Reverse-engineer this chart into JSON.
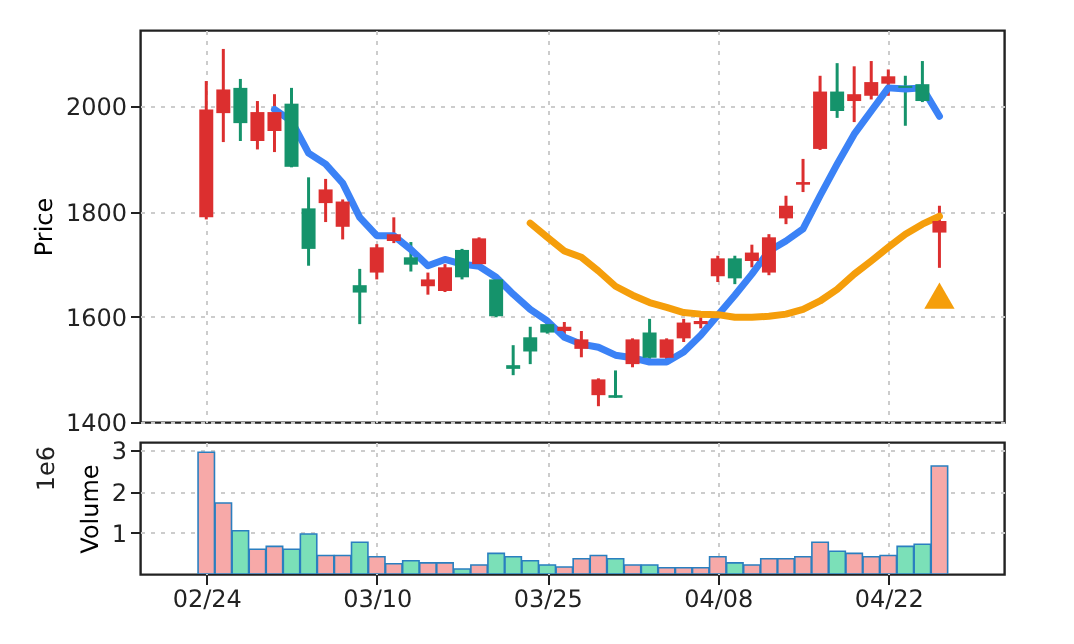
{
  "chart_data": [
    {
      "type": "candlestick",
      "ylabel": "Price",
      "categories": [
        null,
        null,
        null,
        null,
        null,
        null,
        null,
        null,
        null,
        null,
        null,
        null,
        null,
        null,
        null,
        null,
        null,
        null,
        null,
        null,
        null,
        null,
        null,
        null,
        null,
        null,
        null,
        null,
        null,
        null,
        null,
        null,
        null,
        null,
        null,
        null,
        null,
        null,
        null,
        null,
        null,
        null,
        null,
        null
      ],
      "ohlc": [
        [
          1789,
          2048,
          1785,
          1994
        ],
        [
          1987,
          2109,
          1932,
          2032
        ],
        [
          2035,
          2052,
          1934,
          1968
        ],
        [
          1934,
          2010,
          1918,
          1989
        ],
        [
          1953,
          2023,
          1913,
          1989
        ],
        [
          2005,
          2035,
          1884,
          1885
        ],
        [
          1806,
          1865,
          1697,
          1729
        ],
        [
          1816,
          1862,
          1780,
          1842
        ],
        [
          1771,
          1823,
          1747,
          1819
        ],
        [
          1660,
          1691,
          1586,
          1646
        ],
        [
          1684,
          1738,
          1671,
          1732
        ],
        [
          1744,
          1789,
          1740,
          1757
        ],
        [
          1713,
          1742,
          1686,
          1699
        ],
        [
          1658,
          1684,
          1642,
          1671
        ],
        [
          1649,
          1700,
          1647,
          1694
        ],
        [
          1727,
          1729,
          1671,
          1675
        ],
        [
          1700,
          1751,
          1698,
          1749
        ],
        [
          1671,
          1671,
          1599,
          1601
        ],
        [
          1508,
          1546,
          1489,
          1501
        ],
        [
          1561,
          1581,
          1510,
          1534
        ],
        [
          1586,
          1589,
          1568,
          1570
        ],
        [
          1573,
          1590,
          1565,
          1581
        ],
        [
          1539,
          1573,
          1523,
          1557
        ],
        [
          1451,
          1483,
          1430,
          1481
        ],
        [
          1451,
          1498,
          1446,
          1446
        ],
        [
          1510,
          1559,
          1504,
          1557
        ],
        [
          1570,
          1596,
          1520,
          1522
        ],
        [
          1522,
          1559,
          1518,
          1557
        ],
        [
          1559,
          1596,
          1552,
          1589
        ],
        [
          1586,
          1599,
          1578,
          1592
        ],
        [
          1677,
          1716,
          1666,
          1711
        ],
        [
          1711,
          1716,
          1662,
          1673
        ],
        [
          1706,
          1737,
          1694,
          1722
        ],
        [
          1684,
          1757,
          1679,
          1751
        ],
        [
          1787,
          1830,
          1776,
          1811
        ],
        [
          1851,
          1900,
          1837,
          1856
        ],
        [
          1919,
          2058,
          1917,
          2028
        ],
        [
          2028,
          2082,
          1978,
          1991
        ],
        [
          2010,
          2076,
          1970,
          2023
        ],
        [
          2020,
          2086,
          2013,
          2046
        ],
        [
          2043,
          2070,
          2020,
          2057
        ],
        [
          2039,
          2058,
          1963,
          2035
        ],
        [
          2042,
          2086,
          2008,
          2010
        ],
        [
          1760,
          1811,
          1693,
          1782
        ]
      ],
      "colors": [
        "#dc2f2f",
        "#dc2f2f",
        "#15936b",
        "#dc2f2f",
        "#dc2f2f",
        "#15936b",
        "#15936b",
        "#dc2f2f",
        "#dc2f2f",
        "#15936b",
        "#dc2f2f",
        "#dc2f2f",
        "#15936b",
        "#dc2f2f",
        "#dc2f2f",
        "#15936b",
        "#dc2f2f",
        "#15936b",
        "#15936b",
        "#15936b",
        "#15936b",
        "#dc2f2f",
        "#dc2f2f",
        "#dc2f2f",
        "#15936b",
        "#dc2f2f",
        "#15936b",
        "#dc2f2f",
        "#dc2f2f",
        "#dc2f2f",
        "#dc2f2f",
        "#15936b",
        "#dc2f2f",
        "#dc2f2f",
        "#dc2f2f",
        "#dc2f2f",
        "#dc2f2f",
        "#15936b",
        "#dc2f2f",
        "#dc2f2f",
        "#dc2f2f",
        "#15936b",
        "#15936b",
        "#dc2f2f"
      ],
      "ylim": [
        1400,
        2145
      ],
      "yticks": [
        1400,
        1600,
        1800,
        2000
      ],
      "grid": true,
      "tick_labels": "y",
      "series": [
        {
          "type": "line",
          "color": "#3b82f6",
          "values": [
            null,
            null,
            null,
            null,
            1994,
            1972,
            1911,
            1890,
            1854,
            1789,
            1754,
            1754,
            1728,
            1697,
            1709,
            1700,
            1696,
            1675,
            1643,
            1614,
            1592,
            1561,
            1548,
            1542,
            1527,
            1522,
            1514,
            1514,
            1533,
            1565,
            1603,
            1641,
            1681,
            1725,
            1744,
            1767,
            1830,
            1890,
            1947,
            1991,
            2035,
            2033,
            2035,
            1981
          ]
        },
        {
          "type": "line",
          "color": "#f59e0b",
          "values": [
            null,
            null,
            null,
            null,
            null,
            null,
            null,
            null,
            null,
            null,
            null,
            null,
            null,
            null,
            null,
            null,
            null,
            null,
            null,
            1778,
            1751,
            1725,
            1713,
            1687,
            1658,
            1641,
            1627,
            1618,
            1608,
            1605,
            1604,
            1599,
            1599,
            1601,
            1605,
            1614,
            1630,
            1652,
            1681,
            1706,
            1732,
            1757,
            1776,
            1791
          ]
        },
        {
          "type": "scatter",
          "marker": "triangle",
          "color": "#f59e0b",
          "values": [
            null,
            null,
            null,
            null,
            null,
            null,
            null,
            null,
            null,
            null,
            null,
            null,
            null,
            null,
            null,
            null,
            null,
            null,
            null,
            null,
            null,
            null,
            null,
            null,
            null,
            null,
            null,
            null,
            null,
            null,
            null,
            null,
            null,
            null,
            null,
            null,
            null,
            null,
            null,
            null,
            null,
            null,
            null,
            1640
          ]
        }
      ]
    },
    {
      "type": "bar",
      "ylabel": "Volume",
      "annotations": [
        "1e6"
      ],
      "categories": [
        "02/24",
        null,
        null,
        null,
        null,
        null,
        null,
        null,
        null,
        null,
        "03/10",
        null,
        null,
        null,
        null,
        null,
        null,
        null,
        null,
        null,
        "03/25",
        null,
        null,
        null,
        null,
        null,
        null,
        null,
        null,
        null,
        "04/08",
        null,
        null,
        null,
        null,
        null,
        null,
        null,
        null,
        null,
        "04/22",
        null,
        null,
        null
      ],
      "values": [
        2.95,
        1.72,
        1.05,
        0.6,
        0.67,
        0.6,
        0.97,
        0.45,
        0.45,
        0.77,
        0.42,
        0.25,
        0.32,
        0.27,
        0.27,
        0.12,
        0.22,
        0.5,
        0.42,
        0.32,
        0.22,
        0.17,
        0.37,
        0.45,
        0.37,
        0.22,
        0.22,
        0.15,
        0.15,
        0.15,
        0.42,
        0.27,
        0.22,
        0.37,
        0.37,
        0.42,
        0.77,
        0.55,
        0.5,
        0.42,
        0.45,
        0.67,
        0.72,
        2.62
      ],
      "colors": [
        "#f7a9a8",
        "#f7a9a8",
        "#7be0b8",
        "#f7a9a8",
        "#f7a9a8",
        "#7be0b8",
        "#7be0b8",
        "#f7a9a8",
        "#f7a9a8",
        "#7be0b8",
        "#f7a9a8",
        "#f7a9a8",
        "#7be0b8",
        "#f7a9a8",
        "#f7a9a8",
        "#7be0b8",
        "#f7a9a8",
        "#7be0b8",
        "#7be0b8",
        "#7be0b8",
        "#7be0b8",
        "#f7a9a8",
        "#f7a9a8",
        "#f7a9a8",
        "#7be0b8",
        "#f7a9a8",
        "#7be0b8",
        "#f7a9a8",
        "#f7a9a8",
        "#f7a9a8",
        "#f7a9a8",
        "#7be0b8",
        "#f7a9a8",
        "#f7a9a8",
        "#f7a9a8",
        "#f7a9a8",
        "#f7a9a8",
        "#7be0b8",
        "#f7a9a8",
        "#f7a9a8",
        "#f7a9a8",
        "#7be0b8",
        "#7be0b8",
        "#f7a9a8"
      ],
      "ylim": [
        0,
        3.2
      ],
      "yticks": [
        1,
        2,
        3
      ],
      "grid": true
    }
  ]
}
